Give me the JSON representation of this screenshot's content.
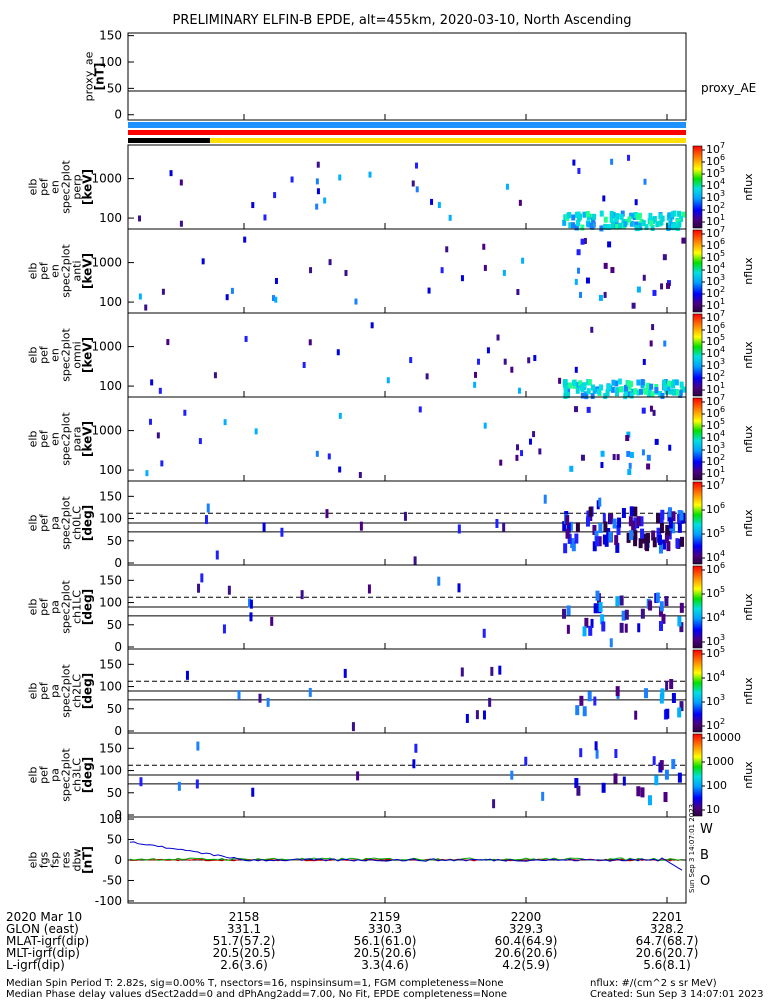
{
  "title": "PRELIMINARY ELFIN-B EPDE, alt=455km, 2020-03-10, North Ascending",
  "chart_data": [
    {
      "type": "line",
      "ylabel_lines": [
        "proxy_ae",
        "[nT]"
      ],
      "yticks": [
        "150",
        "100",
        "50",
        "0"
      ],
      "ylim": [
        -10,
        155
      ],
      "series": [
        {
          "name": "proxy_AE",
          "value": 45
        }
      ]
    },
    {
      "type": "bar",
      "status_bars": [
        "blue",
        "red",
        "black/yellow"
      ]
    },
    {
      "type": "heatmap",
      "ylabel_lines": [
        "elb",
        "pef",
        "en",
        "spec2plot",
        "perp",
        "[keV]"
      ],
      "yticks": [
        "1000",
        "100"
      ],
      "cbar_ticks": [
        "10^7",
        "10^6",
        "10^5",
        "10^4",
        "10^3",
        "10^2",
        "10^1"
      ],
      "cbar_label": "nflux"
    },
    {
      "type": "heatmap",
      "ylabel_lines": [
        "elb",
        "pef",
        "en",
        "spec2plot",
        "anti",
        "[keV]"
      ],
      "yticks": [
        "1000",
        "100"
      ],
      "cbar_ticks": [
        "10^7",
        "10^6",
        "10^5",
        "10^4",
        "10^3",
        "10^2",
        "10^1"
      ],
      "cbar_label": "nflux"
    },
    {
      "type": "heatmap",
      "ylabel_lines": [
        "elb",
        "pef",
        "en",
        "spec2plot",
        "omni",
        "[keV]"
      ],
      "yticks": [
        "1000",
        "100"
      ],
      "cbar_ticks": [
        "10^7",
        "10^6",
        "10^5",
        "10^4",
        "10^3",
        "10^2",
        "10^1"
      ],
      "cbar_label": "nflux"
    },
    {
      "type": "heatmap",
      "ylabel_lines": [
        "elb",
        "pef",
        "en",
        "spec2plot",
        "para",
        "[keV]"
      ],
      "yticks": [
        "1000",
        "100"
      ],
      "cbar_ticks": [
        "10^7",
        "10^6",
        "10^5",
        "10^4",
        "10^3",
        "10^2",
        "10^1"
      ],
      "cbar_label": "nflux"
    },
    {
      "type": "heatmap",
      "ylabel_lines": [
        "elb",
        "pef",
        "pa",
        "spec2plot",
        "ch0LC",
        "[deg]"
      ],
      "yticks": [
        "150",
        "100",
        "50",
        "0"
      ],
      "cbar_ticks": [
        "10^7",
        "10^6",
        "10^5",
        "10^4"
      ],
      "cbar_label": "nflux"
    },
    {
      "type": "heatmap",
      "ylabel_lines": [
        "elb",
        "pef",
        "pa",
        "spec2plot",
        "ch1LC",
        "[deg]"
      ],
      "yticks": [
        "150",
        "100",
        "50",
        "0"
      ],
      "cbar_ticks": [
        "10^6",
        "10^5",
        "10^4",
        "10^3"
      ],
      "cbar_label": "nflux"
    },
    {
      "type": "heatmap",
      "ylabel_lines": [
        "elb",
        "pef",
        "pa",
        "spec2plot",
        "ch2LC",
        "[deg]"
      ],
      "yticks": [
        "150",
        "100",
        "50",
        "0"
      ],
      "cbar_ticks": [
        "10^5",
        "10^4",
        "10^3",
        "10^2"
      ],
      "cbar_label": "nflux"
    },
    {
      "type": "heatmap",
      "ylabel_lines": [
        "elb",
        "pef",
        "pa",
        "spec2plot",
        "ch3LC",
        "[deg]"
      ],
      "yticks": [
        "150",
        "100",
        "50",
        "0"
      ],
      "cbar_ticks": [
        "10000",
        "1000",
        "100",
        "10"
      ],
      "cbar_label": "nflux"
    },
    {
      "type": "line",
      "ylabel_lines": [
        "elb",
        "fgs",
        "fsp",
        "res",
        "dbw",
        "[nT]"
      ],
      "yticks": [
        "100",
        "50",
        "0",
        "-50",
        "-100"
      ],
      "ylim": [
        -105,
        105
      ],
      "legend": [
        {
          "label": "W",
          "color": "#cc0000"
        },
        {
          "label": "B",
          "color": "#00aa00"
        },
        {
          "label": "O",
          "color": "#0000cc"
        }
      ],
      "side_label": "Sun Sep  3 14:07:01 2023"
    }
  ],
  "xaxis": {
    "row_labels": [
      "2020 Mar 10",
      "GLON (east)",
      "MLAT-igrf(dip)",
      "MLT-igrf(dip)",
      "L-igrf(dip)"
    ],
    "columns": [
      {
        "time": "2158",
        "glon": "331.1",
        "mlat": "51.7(57.2)",
        "mlt": "20.5(20.5)",
        "l": "2.6(3.6)"
      },
      {
        "time": "2159",
        "glon": "330.3",
        "mlat": "56.1(61.0)",
        "mlt": "20.5(20.6)",
        "l": "3.3(4.6)"
      },
      {
        "time": "2200",
        "glon": "329.3",
        "mlat": "60.4(64.9)",
        "mlt": "20.6(20.6)",
        "l": "4.2(5.9)"
      },
      {
        "time": "2201",
        "glon": "328.2",
        "mlat": "64.7(68.7)",
        "mlt": "20.6(20.7)",
        "l": "5.6(8.1)"
      }
    ]
  },
  "footer": {
    "line1_left": "Median Spin Period T: 2.82s, sig=0.00% T, nsectors=16, nspinsinsum=1, FGM completeness=None",
    "line2_left": "Median Phase delay values dSect2add=0 and dPhAng2add=7.00, No Fit, EPDE completeness=None",
    "line1_right": "nflux: #/(cm^2 s sr MeV)",
    "line2_right": "Created: Sun Sep  3 14:07:01 2023"
  }
}
